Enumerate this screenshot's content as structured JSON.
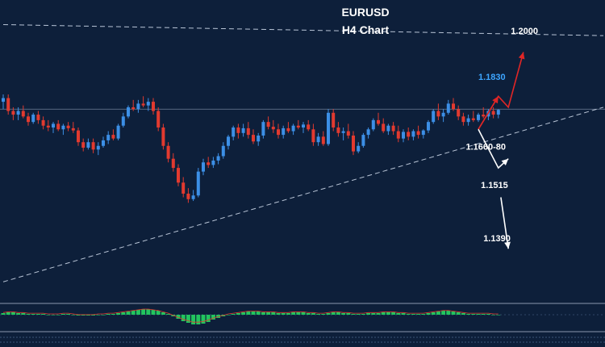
{
  "chart_data": {
    "type": "candlestick",
    "title": "EURUSD",
    "subtitle": "H4 Chart",
    "ylim": [
      1.128,
      1.2075
    ],
    "colors": {
      "background": "#0d1f3a",
      "bull": "#3c8fe6",
      "bear": "#e23a2f",
      "projection_up": "#e02626",
      "projection_down": "#ffffff",
      "trendline": "#b8c4d6",
      "target_1830": "#3da5ff",
      "macd_hist": "#22c55e",
      "macd_line": "#e23a2f"
    },
    "candles": [
      [
        1.182,
        1.184,
        1.18,
        1.183
      ],
      [
        1.183,
        1.184,
        1.1785,
        1.1795
      ],
      [
        1.1795,
        1.1805,
        1.177,
        1.1785
      ],
      [
        1.1785,
        1.1805,
        1.177,
        1.1795
      ],
      [
        1.1795,
        1.181,
        1.1775,
        1.178
      ],
      [
        1.178,
        1.179,
        1.1755,
        1.1765
      ],
      [
        1.1765,
        1.179,
        1.176,
        1.1785
      ],
      [
        1.1785,
        1.1795,
        1.176,
        1.177
      ],
      [
        1.177,
        1.178,
        1.1745,
        1.1755
      ],
      [
        1.1755,
        1.177,
        1.174,
        1.175
      ],
      [
        1.175,
        1.1765,
        1.1735,
        1.176
      ],
      [
        1.176,
        1.177,
        1.174,
        1.1745
      ],
      [
        1.1745,
        1.176,
        1.173,
        1.1755
      ],
      [
        1.1755,
        1.1765,
        1.174,
        1.1748
      ],
      [
        1.1748,
        1.1765,
        1.1735,
        1.1742
      ],
      [
        1.1742,
        1.175,
        1.17,
        1.171
      ],
      [
        1.171,
        1.172,
        1.1685,
        1.1695
      ],
      [
        1.1695,
        1.172,
        1.169,
        1.171
      ],
      [
        1.171,
        1.172,
        1.168,
        1.169
      ],
      [
        1.169,
        1.171,
        1.1675,
        1.17
      ],
      [
        1.17,
        1.1725,
        1.1695,
        1.1715
      ],
      [
        1.1715,
        1.174,
        1.1705,
        1.173
      ],
      [
        1.173,
        1.1745,
        1.1715,
        1.172
      ],
      [
        1.172,
        1.176,
        1.1715,
        1.1755
      ],
      [
        1.1755,
        1.179,
        1.175,
        1.178
      ],
      [
        1.178,
        1.181,
        1.1775,
        1.1805
      ],
      [
        1.1805,
        1.1825,
        1.1795,
        1.18
      ],
      [
        1.18,
        1.1825,
        1.179,
        1.1815
      ],
      [
        1.1815,
        1.1835,
        1.1805,
        1.181
      ],
      [
        1.181,
        1.183,
        1.1795,
        1.182
      ],
      [
        1.182,
        1.183,
        1.1785,
        1.1795
      ],
      [
        1.1795,
        1.1805,
        1.174,
        1.175
      ],
      [
        1.175,
        1.176,
        1.169,
        1.17
      ],
      [
        1.17,
        1.171,
        1.1655,
        1.1665
      ],
      [
        1.1665,
        1.168,
        1.163,
        1.164
      ],
      [
        1.164,
        1.165,
        1.159,
        1.16
      ],
      [
        1.16,
        1.1615,
        1.156,
        1.157
      ],
      [
        1.157,
        1.1585,
        1.1545,
        1.1555
      ],
      [
        1.1555,
        1.158,
        1.155,
        1.1565
      ],
      [
        1.1565,
        1.164,
        1.156,
        1.163
      ],
      [
        1.163,
        1.1665,
        1.162,
        1.1655
      ],
      [
        1.1655,
        1.167,
        1.164,
        1.1648
      ],
      [
        1.1648,
        1.167,
        1.164,
        1.166
      ],
      [
        1.166,
        1.168,
        1.165,
        1.1672
      ],
      [
        1.1672,
        1.171,
        1.1665,
        1.17
      ],
      [
        1.17,
        1.173,
        1.169,
        1.1725
      ],
      [
        1.1725,
        1.1755,
        1.1715,
        1.175
      ],
      [
        1.175,
        1.176,
        1.172,
        1.1735
      ],
      [
        1.1735,
        1.176,
        1.1725,
        1.1748
      ],
      [
        1.1748,
        1.1765,
        1.172,
        1.173
      ],
      [
        1.173,
        1.1745,
        1.1705,
        1.1712
      ],
      [
        1.1712,
        1.1735,
        1.17,
        1.1728
      ],
      [
        1.1728,
        1.177,
        1.172,
        1.1765
      ],
      [
        1.1765,
        1.178,
        1.1745,
        1.1752
      ],
      [
        1.1752,
        1.177,
        1.1735,
        1.1745
      ],
      [
        1.1745,
        1.176,
        1.172,
        1.173
      ],
      [
        1.173,
        1.1755,
        1.172,
        1.1748
      ],
      [
        1.1748,
        1.1765,
        1.1735,
        1.174
      ],
      [
        1.174,
        1.176,
        1.173,
        1.1755
      ],
      [
        1.1755,
        1.177,
        1.1745,
        1.175
      ],
      [
        1.175,
        1.1765,
        1.1735,
        1.1758
      ],
      [
        1.1758,
        1.177,
        1.174,
        1.1745
      ],
      [
        1.1745,
        1.176,
        1.17,
        1.171
      ],
      [
        1.171,
        1.1735,
        1.17,
        1.1725
      ],
      [
        1.1725,
        1.174,
        1.17,
        1.1705
      ],
      [
        1.1705,
        1.18,
        1.17,
        1.179
      ],
      [
        1.179,
        1.18,
        1.174,
        1.175
      ],
      [
        1.175,
        1.1765,
        1.1725,
        1.1735
      ],
      [
        1.1735,
        1.175,
        1.1715,
        1.174
      ],
      [
        1.174,
        1.176,
        1.172,
        1.1728
      ],
      [
        1.1728,
        1.174,
        1.1675,
        1.1685
      ],
      [
        1.1685,
        1.171,
        1.168,
        1.17
      ],
      [
        1.17,
        1.1735,
        1.1695,
        1.173
      ],
      [
        1.173,
        1.175,
        1.172,
        1.1745
      ],
      [
        1.1745,
        1.1775,
        1.174,
        1.177
      ],
      [
        1.177,
        1.179,
        1.1755,
        1.176
      ],
      [
        1.176,
        1.1775,
        1.1735,
        1.174
      ],
      [
        1.174,
        1.176,
        1.173,
        1.1755
      ],
      [
        1.1755,
        1.1765,
        1.173,
        1.174
      ],
      [
        1.174,
        1.1755,
        1.171,
        1.172
      ],
      [
        1.172,
        1.1745,
        1.171,
        1.1738
      ],
      [
        1.1738,
        1.175,
        1.1715,
        1.1725
      ],
      [
        1.1725,
        1.1745,
        1.1715,
        1.174
      ],
      [
        1.174,
        1.1755,
        1.172,
        1.173
      ],
      [
        1.173,
        1.1745,
        1.172,
        1.1742
      ],
      [
        1.1742,
        1.177,
        1.1735,
        1.1765
      ],
      [
        1.1765,
        1.18,
        1.176,
        1.1795
      ],
      [
        1.1795,
        1.1815,
        1.177,
        1.178
      ],
      [
        1.178,
        1.18,
        1.1765,
        1.179
      ],
      [
        1.179,
        1.1825,
        1.1785,
        1.1815
      ],
      [
        1.1815,
        1.183,
        1.1795,
        1.18
      ],
      [
        1.18,
        1.181,
        1.177,
        1.178
      ],
      [
        1.178,
        1.179,
        1.1755,
        1.1765
      ],
      [
        1.1765,
        1.1785,
        1.1755,
        1.1775
      ],
      [
        1.1775,
        1.1795,
        1.1765,
        1.177
      ],
      [
        1.177,
        1.179,
        1.1765,
        1.1785
      ],
      [
        1.1785,
        1.1805,
        1.1775,
        1.178
      ],
      [
        1.178,
        1.18,
        1.177,
        1.1795
      ],
      [
        1.1795,
        1.1805,
        1.1775,
        1.1785
      ],
      [
        1.1785,
        1.18,
        1.1775,
        1.1798
      ]
    ],
    "trendline": {
      "start": [
        0,
        1.133
      ],
      "end": [
        120,
        1.1805
      ]
    },
    "resistance_line": {
      "start": [
        0,
        1.203
      ],
      "end": [
        120,
        1.2
      ]
    },
    "horizontal_level": 1.18,
    "projections": {
      "up": [
        [
          95,
          1.1745
        ],
        [
          99,
          1.1835
        ],
        [
          101,
          1.1805
        ],
        [
          104,
          1.1955
        ]
      ],
      "down": [
        [
          95,
          1.1745
        ],
        [
          99,
          1.164
        ],
        [
          101,
          1.1665
        ],
        [
          99.5,
          1.156
        ],
        [
          101,
          1.142
        ]
      ]
    },
    "annotations": [
      {
        "text": "1.2000",
        "x": 101.5,
        "y": 1.2005,
        "color": "#ffffff"
      },
      {
        "text": "1.1830",
        "x": 95,
        "y": 1.188,
        "color": "#3da5ff"
      },
      {
        "text": "1.1660-80",
        "x": 92.5,
        "y": 1.169,
        "color": "#ffffff"
      },
      {
        "text": "1.1515",
        "x": 95.5,
        "y": 1.1585,
        "color": "#ffffff"
      },
      {
        "text": "1.1390",
        "x": 96,
        "y": 1.144,
        "color": "#ffffff"
      }
    ],
    "macd_histogram": [
      2,
      3,
      3,
      2,
      2,
      1,
      1,
      1,
      1,
      0,
      0,
      0,
      1,
      1,
      0,
      -1,
      -1,
      -1,
      -1,
      0,
      0,
      1,
      1,
      2,
      3,
      4,
      5,
      6,
      7,
      7,
      6,
      5,
      3,
      1,
      -2,
      -5,
      -8,
      -10,
      -12,
      -12,
      -11,
      -9,
      -6,
      -4,
      -2,
      0,
      1,
      2,
      3,
      4,
      4,
      4,
      3,
      3,
      3,
      2,
      2,
      2,
      3,
      3,
      3,
      2,
      2,
      1,
      1,
      2,
      3,
      3,
      2,
      2,
      1,
      1,
      1,
      2,
      2,
      2,
      3,
      3,
      3,
      2,
      2,
      1,
      1,
      1,
      1,
      2,
      3,
      4,
      5,
      5,
      4,
      3,
      2,
      1,
      1,
      1,
      1,
      1,
      0,
      0
    ]
  }
}
